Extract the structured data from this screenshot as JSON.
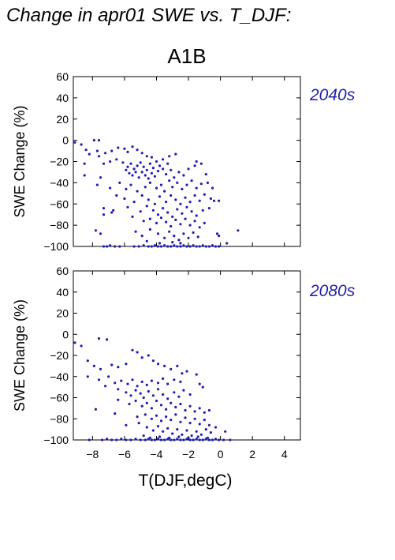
{
  "title": "Change in apr01 SWE vs. T_DJF:",
  "subtitle": "A1B",
  "colors": {
    "points": "#1f1fb4",
    "period_label": "#2222aa"
  },
  "chart_data": [
    {
      "type": "scatter",
      "panel_label": "2040s",
      "ylabel": "SWE Change (%)",
      "xlabel": "",
      "xlim": [
        -9.2,
        5
      ],
      "ylim": [
        -100,
        60
      ],
      "xticks": [
        -8,
        -6,
        -4,
        -2,
        0,
        2,
        4
      ],
      "xtick_labels": [],
      "yticks": [
        -100,
        -80,
        -60,
        -40,
        -20,
        0,
        20,
        40,
        60
      ],
      "ytick_labels": [
        "−100",
        "−80",
        "−60",
        "−40",
        "−20",
        "0",
        "20",
        "40",
        "60"
      ],
      "grid": false,
      "points": [
        [
          -9.1,
          -2
        ],
        [
          -8.7,
          -4
        ],
        [
          -7.9,
          0
        ],
        [
          -7.6,
          0
        ],
        [
          -8.4,
          -9
        ],
        [
          -8.2,
          -13
        ],
        [
          -7.7,
          -10
        ],
        [
          -7.2,
          -12
        ],
        [
          -6.8,
          -10
        ],
        [
          -6.4,
          -7
        ],
        [
          -6.0,
          -8
        ],
        [
          -5.8,
          -11
        ],
        [
          -5.5,
          -6
        ],
        [
          -5.2,
          -9
        ],
        [
          -4.9,
          -12
        ],
        [
          -4.6,
          -15
        ],
        [
          -4.3,
          -16
        ],
        [
          -8.5,
          -22
        ],
        [
          -7.6,
          -15
        ],
        [
          -7.3,
          -22
        ],
        [
          -6.9,
          -20
        ],
        [
          -6.5,
          -18
        ],
        [
          -6.1,
          -21
        ],
        [
          -5.8,
          -25
        ],
        [
          -5.6,
          -22
        ],
        [
          -5.4,
          -27
        ],
        [
          -5.2,
          -24
        ],
        [
          -5.0,
          -21
        ],
        [
          -4.8,
          -25
        ],
        [
          -4.6,
          -28
        ],
        [
          -4.4,
          -22
        ],
        [
          -4.2,
          -26
        ],
        [
          -4.0,
          -20
        ],
        [
          -3.8,
          -24
        ],
        [
          -3.6,
          -18
        ],
        [
          -3.3,
          -22
        ],
        [
          -5.9,
          -28
        ],
        [
          -5.7,
          -31
        ],
        [
          -5.5,
          -33
        ],
        [
          -5.3,
          -30
        ],
        [
          -5.1,
          -35
        ],
        [
          -4.9,
          -30
        ],
        [
          -4.7,
          -33
        ],
        [
          -4.5,
          -36
        ],
        [
          -4.3,
          -31
        ],
        [
          -4.1,
          -34
        ],
        [
          -3.9,
          -29
        ],
        [
          -3.6,
          -27
        ],
        [
          -3.4,
          -32
        ],
        [
          -3.1,
          -28
        ],
        [
          -2.9,
          -35
        ],
        [
          -2.6,
          -30
        ],
        [
          -2.3,
          -33
        ],
        [
          -2.0,
          -27
        ],
        [
          -1.6,
          -24
        ],
        [
          -3.2,
          -15
        ],
        [
          -2.8,
          -13
        ],
        [
          -1.5,
          -20
        ],
        [
          -1.2,
          -22
        ],
        [
          -0.9,
          -32
        ],
        [
          -8.5,
          -33
        ],
        [
          -7.5,
          -35
        ],
        [
          -7.7,
          -42
        ],
        [
          -6.3,
          -40
        ],
        [
          -5.9,
          -46
        ],
        [
          -5.6,
          -42
        ],
        [
          -5.2,
          -48
        ],
        [
          -4.7,
          -44
        ],
        [
          -4.4,
          -40
        ],
        [
          -4.0,
          -45
        ],
        [
          -3.7,
          -42
        ],
        [
          -3.5,
          -48
        ],
        [
          -3.2,
          -38
        ],
        [
          -3.0,
          -44
        ],
        [
          -2.7,
          -40
        ],
        [
          -2.4,
          -46
        ],
        [
          -2.1,
          -42
        ],
        [
          -1.8,
          -38
        ],
        [
          -1.5,
          -45
        ],
        [
          -1.2,
          -41
        ],
        [
          -0.8,
          -40
        ],
        [
          -0.5,
          -45
        ],
        [
          -6.9,
          -45
        ],
        [
          -6.5,
          -52
        ],
        [
          -6.0,
          -55
        ],
        [
          -5.4,
          -58
        ],
        [
          -4.9,
          -52
        ],
        [
          -4.5,
          -56
        ],
        [
          -4.1,
          -60
        ],
        [
          -3.8,
          -53
        ],
        [
          -3.4,
          -58
        ],
        [
          -3.1,
          -52
        ],
        [
          -2.8,
          -56
        ],
        [
          -2.5,
          -60
        ],
        [
          -2.2,
          -54
        ],
        [
          -1.9,
          -58
        ],
        [
          -1.6,
          -52
        ],
        [
          -1.3,
          -57
        ],
        [
          -1.0,
          -51
        ],
        [
          -0.6,
          -55
        ],
        [
          -0.4,
          -57
        ],
        [
          -0.1,
          -57
        ],
        [
          -7.3,
          -64
        ],
        [
          -6.8,
          -68
        ],
        [
          -6.7,
          -66
        ],
        [
          -5.8,
          -63
        ],
        [
          -5.0,
          -67
        ],
        [
          -4.6,
          -62
        ],
        [
          -4.2,
          -66
        ],
        [
          -3.9,
          -70
        ],
        [
          -3.6,
          -64
        ],
        [
          -3.3,
          -68
        ],
        [
          -3.0,
          -72
        ],
        [
          -2.7,
          -65
        ],
        [
          -2.4,
          -69
        ],
        [
          -2.1,
          -63
        ],
        [
          -1.8,
          -67
        ],
        [
          -1.5,
          -71
        ],
        [
          -1.1,
          -66
        ],
        [
          -0.7,
          -64
        ],
        [
          -7.3,
          -70
        ],
        [
          -5.5,
          -72
        ],
        [
          -4.8,
          -76
        ],
        [
          -4.4,
          -74
        ],
        [
          -4.0,
          -78
        ],
        [
          -3.7,
          -73
        ],
        [
          -3.4,
          -77
        ],
        [
          -3.1,
          -81
        ],
        [
          -2.8,
          -75
        ],
        [
          -2.5,
          -79
        ],
        [
          -2.2,
          -74
        ],
        [
          -1.9,
          -80
        ],
        [
          -1.6,
          -76
        ],
        [
          -1.3,
          -82
        ],
        [
          -1.0,
          -78
        ],
        [
          -7.8,
          -85
        ],
        [
          -7.5,
          -88
        ],
        [
          -5.3,
          -86
        ],
        [
          -4.9,
          -90
        ],
        [
          -4.4,
          -84
        ],
        [
          -3.9,
          -88
        ],
        [
          -3.5,
          -92
        ],
        [
          -3.2,
          -86
        ],
        [
          -2.9,
          -90
        ],
        [
          -2.6,
          -94
        ],
        [
          -2.3,
          -88
        ],
        [
          -2.0,
          -92
        ],
        [
          -1.7,
          -87
        ],
        [
          -1.4,
          -91
        ],
        [
          -0.2,
          -88
        ],
        [
          -0.1,
          -90
        ],
        [
          1.1,
          -85
        ],
        [
          -4.6,
          -95
        ],
        [
          -3.8,
          -97
        ],
        [
          -3.0,
          -96
        ],
        [
          -2.5,
          -97
        ],
        [
          -7.3,
          -100
        ],
        [
          -7.1,
          -100
        ],
        [
          -6.9,
          -99
        ],
        [
          -6.6,
          -100
        ],
        [
          -6.3,
          -100
        ],
        [
          -5.4,
          -100
        ],
        [
          -5.1,
          -100
        ],
        [
          -4.8,
          -99
        ],
        [
          -4.5,
          -100
        ],
        [
          -4.3,
          -100
        ],
        [
          -4.1,
          -99
        ],
        [
          -3.9,
          -100
        ],
        [
          -3.7,
          -100
        ],
        [
          -3.5,
          -99
        ],
        [
          -3.3,
          -100
        ],
        [
          -3.1,
          -100
        ],
        [
          -2.9,
          -99
        ],
        [
          -2.7,
          -100
        ],
        [
          -2.5,
          -100
        ],
        [
          -2.3,
          -99
        ],
        [
          -2.1,
          -100
        ],
        [
          -1.9,
          -100
        ],
        [
          -1.7,
          -99
        ],
        [
          -1.5,
          -100
        ],
        [
          -1.3,
          -100
        ],
        [
          -1.1,
          -99
        ],
        [
          -0.9,
          -100
        ],
        [
          -0.7,
          -100
        ],
        [
          -0.5,
          -99
        ],
        [
          -0.3,
          -100
        ],
        [
          -0.1,
          -100
        ],
        [
          0.4,
          -97
        ]
      ]
    },
    {
      "type": "scatter",
      "panel_label": "2080s",
      "ylabel": "SWE Change (%)",
      "xlabel": "T(DJF,degC)",
      "xlim": [
        -9.2,
        5
      ],
      "ylim": [
        -100,
        60
      ],
      "xticks": [
        -8,
        -6,
        -4,
        -2,
        0,
        2,
        4
      ],
      "xtick_labels": [
        "−8",
        "−6",
        "−4",
        "−2",
        "0",
        "2",
        "4"
      ],
      "yticks": [
        -100,
        -80,
        -60,
        -40,
        -20,
        0,
        20,
        40,
        60
      ],
      "ytick_labels": [
        "−100",
        "−80",
        "−60",
        "−40",
        "−20",
        "0",
        "20",
        "40",
        "60"
      ],
      "grid": false,
      "points": [
        [
          -9.1,
          -8
        ],
        [
          -8.7,
          -11
        ],
        [
          -7.6,
          -4
        ],
        [
          -7.1,
          -5
        ],
        [
          -8.3,
          -25
        ],
        [
          -7.9,
          -30
        ],
        [
          -7.5,
          -33
        ],
        [
          -6.8,
          -29
        ],
        [
          -6.4,
          -31
        ],
        [
          -5.9,
          -28
        ],
        [
          -5.5,
          -15
        ],
        [
          -5.2,
          -17
        ],
        [
          -4.9,
          -22
        ],
        [
          -4.5,
          -20
        ],
        [
          -4.2,
          -25
        ],
        [
          -3.9,
          -28
        ],
        [
          -3.5,
          -30
        ],
        [
          -3.1,
          -33
        ],
        [
          -2.7,
          -30
        ],
        [
          -2.4,
          -37
        ],
        [
          -2.1,
          -35
        ],
        [
          -1.5,
          -38
        ],
        [
          -8.3,
          -40
        ],
        [
          -7.6,
          -43
        ],
        [
          -7.0,
          -40
        ],
        [
          -6.6,
          -46
        ],
        [
          -6.2,
          -44
        ],
        [
          -5.8,
          -47
        ],
        [
          -5.5,
          -43
        ],
        [
          -5.2,
          -49
        ],
        [
          -4.9,
          -45
        ],
        [
          -4.6,
          -48
        ],
        [
          -4.3,
          -44
        ],
        [
          -3.9,
          -46
        ],
        [
          -3.6,
          -42
        ],
        [
          -3.3,
          -47
        ],
        [
          -2.9,
          -43
        ],
        [
          -2.5,
          -45
        ],
        [
          -7.2,
          -49
        ],
        [
          -6.4,
          -52
        ],
        [
          -5.9,
          -55
        ],
        [
          -5.6,
          -58
        ],
        [
          -5.3,
          -53
        ],
        [
          -5.0,
          -56
        ],
        [
          -4.8,
          -60
        ],
        [
          -4.5,
          -54
        ],
        [
          -4.2,
          -58
        ],
        [
          -3.9,
          -52
        ],
        [
          -3.6,
          -57
        ],
        [
          -3.3,
          -61
        ],
        [
          -2.9,
          -55
        ],
        [
          -2.6,
          -59
        ],
        [
          -2.3,
          -53
        ],
        [
          -1.9,
          -57
        ],
        [
          -1.3,
          -47
        ],
        [
          -1.1,
          -50
        ],
        [
          -7.8,
          -71
        ],
        [
          -6.4,
          -62
        ],
        [
          -5.7,
          -66
        ],
        [
          -5.3,
          -63
        ],
        [
          -4.9,
          -68
        ],
        [
          -4.6,
          -65
        ],
        [
          -4.3,
          -70
        ],
        [
          -4.0,
          -63
        ],
        [
          -3.7,
          -67
        ],
        [
          -3.4,
          -71
        ],
        [
          -3.1,
          -65
        ],
        [
          -2.8,
          -69
        ],
        [
          -2.5,
          -66
        ],
        [
          -2.2,
          -72
        ],
        [
          -1.9,
          -68
        ],
        [
          -1.6,
          -73
        ],
        [
          -1.3,
          -70
        ],
        [
          -1.0,
          -74
        ],
        [
          -0.7,
          -72
        ],
        [
          -6.6,
          -75
        ],
        [
          -5.2,
          -78
        ],
        [
          -4.7,
          -76
        ],
        [
          -4.3,
          -80
        ],
        [
          -4.0,
          -77
        ],
        [
          -3.7,
          -82
        ],
        [
          -3.4,
          -78
        ],
        [
          -3.1,
          -81
        ],
        [
          -2.8,
          -76
        ],
        [
          -2.5,
          -83
        ],
        [
          -2.2,
          -79
        ],
        [
          -1.9,
          -84
        ],
        [
          -1.6,
          -80
        ],
        [
          -1.3,
          -85
        ],
        [
          -1.0,
          -81
        ],
        [
          -0.7,
          -86
        ],
        [
          -5.9,
          -86
        ],
        [
          -5.1,
          -84
        ],
        [
          -4.6,
          -88
        ],
        [
          -4.2,
          -91
        ],
        [
          -3.9,
          -87
        ],
        [
          -3.6,
          -92
        ],
        [
          -3.3,
          -89
        ],
        [
          -3.0,
          -94
        ],
        [
          -2.7,
          -90
        ],
        [
          -2.4,
          -95
        ],
        [
          -2.1,
          -91
        ],
        [
          -1.8,
          -96
        ],
        [
          -1.5,
          -92
        ],
        [
          -1.2,
          -95
        ],
        [
          -0.9,
          -90
        ],
        [
          -0.6,
          -93
        ],
        [
          -0.3,
          -88
        ],
        [
          0.3,
          -92
        ],
        [
          -4.8,
          -96
        ],
        [
          -4.4,
          -98
        ],
        [
          -3.8,
          -97
        ],
        [
          -3.2,
          -98
        ],
        [
          -2.6,
          -97
        ],
        [
          -2.0,
          -98
        ],
        [
          -1.4,
          -97
        ],
        [
          -0.8,
          -98
        ],
        [
          -8.2,
          -100
        ],
        [
          -7.4,
          -100
        ],
        [
          -7.1,
          -99
        ],
        [
          -6.8,
          -100
        ],
        [
          -6.5,
          -100
        ],
        [
          -6.2,
          -99
        ],
        [
          -5.9,
          -100
        ],
        [
          -5.6,
          -100
        ],
        [
          -5.3,
          -99
        ],
        [
          -5.0,
          -100
        ],
        [
          -4.7,
          -100
        ],
        [
          -4.5,
          -99
        ],
        [
          -4.3,
          -100
        ],
        [
          -4.1,
          -100
        ],
        [
          -3.9,
          -99
        ],
        [
          -3.7,
          -100
        ],
        [
          -3.5,
          -100
        ],
        [
          -3.3,
          -99
        ],
        [
          -3.1,
          -100
        ],
        [
          -2.9,
          -100
        ],
        [
          -2.7,
          -99
        ],
        [
          -2.5,
          -100
        ],
        [
          -2.3,
          -100
        ],
        [
          -2.1,
          -99
        ],
        [
          -1.9,
          -100
        ],
        [
          -1.7,
          -100
        ],
        [
          -1.5,
          -99
        ],
        [
          -1.3,
          -100
        ],
        [
          -1.1,
          -100
        ],
        [
          -0.9,
          -99
        ],
        [
          -0.7,
          -100
        ],
        [
          -0.5,
          -100
        ],
        [
          -0.3,
          -99
        ],
        [
          -0.1,
          -100
        ],
        [
          0.2,
          -100
        ],
        [
          0.6,
          -100
        ]
      ]
    }
  ]
}
